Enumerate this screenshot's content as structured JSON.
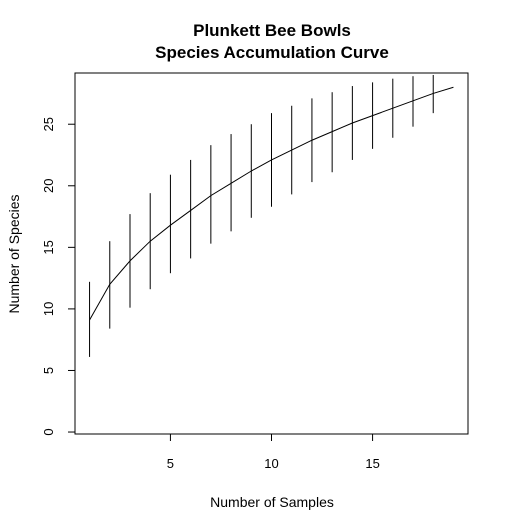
{
  "chart_data": {
    "type": "line",
    "title": "Plunkett Bee Bowls",
    "subtitle": "Species Accumulation Curve",
    "xlabel": "Number of Samples",
    "ylabel": "Number of Species",
    "xlim": [
      0.28,
      19.72
    ],
    "ylim": [
      -0.16,
      29.16
    ],
    "x_ticks": [
      5,
      10,
      15
    ],
    "y_ticks": [
      0,
      5,
      10,
      15,
      20,
      25
    ],
    "grid": false,
    "series": [
      {
        "x": [
          1,
          2,
          3,
          4,
          5,
          6,
          7,
          8,
          9,
          10,
          11,
          12,
          13,
          14,
          15,
          16,
          17,
          18,
          19
        ],
        "values": [
          9.1,
          12.0,
          13.9,
          15.5,
          16.8,
          18.0,
          19.2,
          20.2,
          21.2,
          22.1,
          22.9,
          23.7,
          24.4,
          25.1,
          25.7,
          26.3,
          26.9,
          27.5,
          28.0
        ],
        "error_low": [
          6.1,
          8.4,
          10.1,
          11.6,
          12.9,
          14.1,
          15.3,
          16.3,
          17.4,
          18.3,
          19.3,
          20.3,
          21.1,
          22.1,
          23.0,
          23.9,
          24.8,
          25.9
        ],
        "error_high": [
          12.2,
          15.5,
          17.7,
          19.4,
          20.9,
          22.1,
          23.3,
          24.2,
          25.0,
          25.9,
          26.5,
          27.1,
          27.6,
          28.1,
          28.4,
          28.7,
          28.9,
          29.0
        ]
      }
    ]
  }
}
